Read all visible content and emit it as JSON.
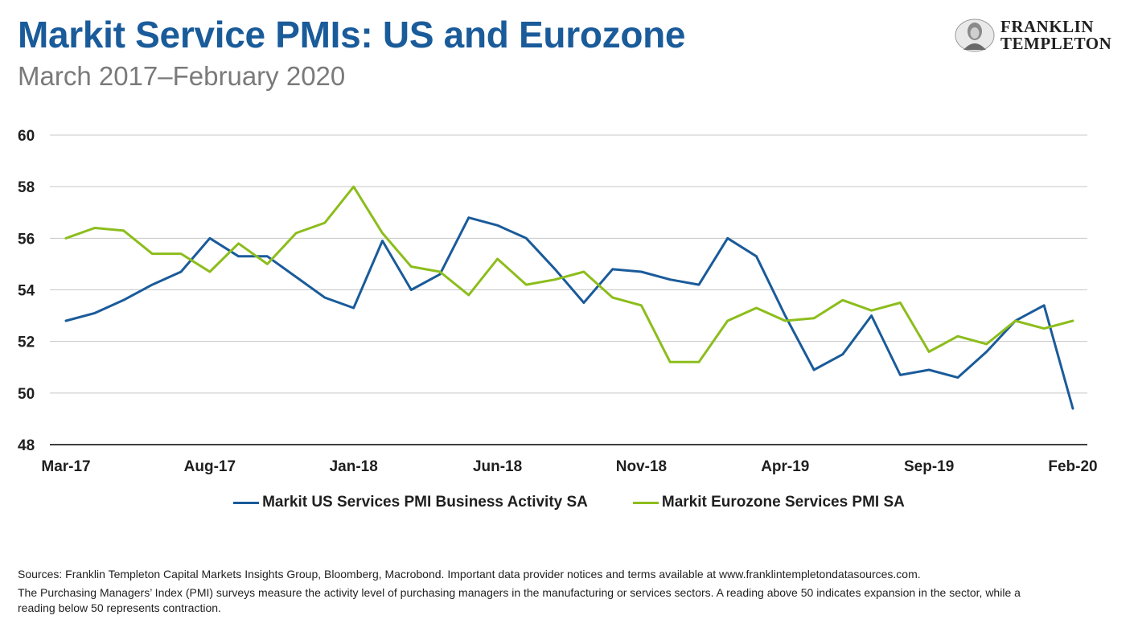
{
  "header": {
    "title": "Markit Service PMIs: US and Eurozone",
    "subtitle": "March 2017–February 2020",
    "logo_line1": "FRANKLIN",
    "logo_line2": "TEMPLETON"
  },
  "footer": {
    "sources": "Sources: Franklin Templeton Capital Markets Insights Group, Bloomberg, Macrobond. Important data provider notices and terms available at www.franklintempletondatasources.com.",
    "note": "The Purchasing Managers’ Index (PMI) surveys measure the activity level of purchasing managers in the manufacturing or services sectors. A reading above 50 indicates expansion in the sector, while a reading below 50 represents contraction."
  },
  "colors": {
    "us": "#1a5b9a",
    "eurozone": "#8cbd1c",
    "grid": "#c8c8c8",
    "axis": "#000000"
  },
  "chart_data": {
    "type": "line",
    "title": "Markit Service PMIs: US and Eurozone",
    "subtitle": "March 2017–February 2020",
    "xlabel": "",
    "ylabel": "",
    "ylim": [
      48,
      60
    ],
    "yticks": [
      48,
      50,
      52,
      54,
      56,
      58,
      60
    ],
    "grid": true,
    "legend": "bottom",
    "x": [
      "Mar-17",
      "Apr-17",
      "May-17",
      "Jun-17",
      "Jul-17",
      "Aug-17",
      "Sep-17",
      "Oct-17",
      "Nov-17",
      "Dec-17",
      "Jan-18",
      "Feb-18",
      "Mar-18",
      "Apr-18",
      "May-18",
      "Jun-18",
      "Jul-18",
      "Aug-18",
      "Sep-18",
      "Oct-18",
      "Nov-18",
      "Dec-18",
      "Jan-19",
      "Feb-19",
      "Mar-19",
      "Apr-19",
      "May-19",
      "Jun-19",
      "Jul-19",
      "Aug-19",
      "Sep-19",
      "Oct-19",
      "Nov-19",
      "Dec-19",
      "Jan-20",
      "Feb-20"
    ],
    "xtick_labels": [
      "Mar-17",
      "Aug-17",
      "Jan-18",
      "Jun-18",
      "Nov-18",
      "Apr-19",
      "Sep-19",
      "Feb-20"
    ],
    "series": [
      {
        "name": "Markit US Services PMI Business Activity SA",
        "color": "#1a5b9a",
        "values": [
          52.8,
          53.1,
          53.6,
          54.2,
          54.7,
          56.0,
          55.3,
          55.3,
          54.5,
          53.7,
          53.3,
          55.9,
          54.0,
          54.6,
          56.8,
          56.5,
          56.0,
          54.8,
          53.5,
          54.8,
          54.7,
          54.4,
          54.2,
          56.0,
          55.3,
          53.0,
          50.9,
          51.5,
          53.0,
          50.7,
          50.9,
          50.6,
          51.6,
          52.8,
          53.4,
          49.4
        ]
      },
      {
        "name": "Markit Eurozone Services PMI SA",
        "color": "#8cbd1c",
        "values": [
          56.0,
          56.4,
          56.3,
          55.4,
          55.4,
          54.7,
          55.8,
          55.0,
          56.2,
          56.6,
          58.0,
          56.2,
          54.9,
          54.7,
          53.8,
          55.2,
          54.2,
          54.4,
          54.7,
          53.7,
          53.4,
          51.2,
          51.2,
          52.8,
          53.3,
          52.8,
          52.9,
          53.6,
          53.2,
          53.5,
          51.6,
          52.2,
          51.9,
          52.8,
          52.5,
          52.8
        ]
      }
    ]
  }
}
